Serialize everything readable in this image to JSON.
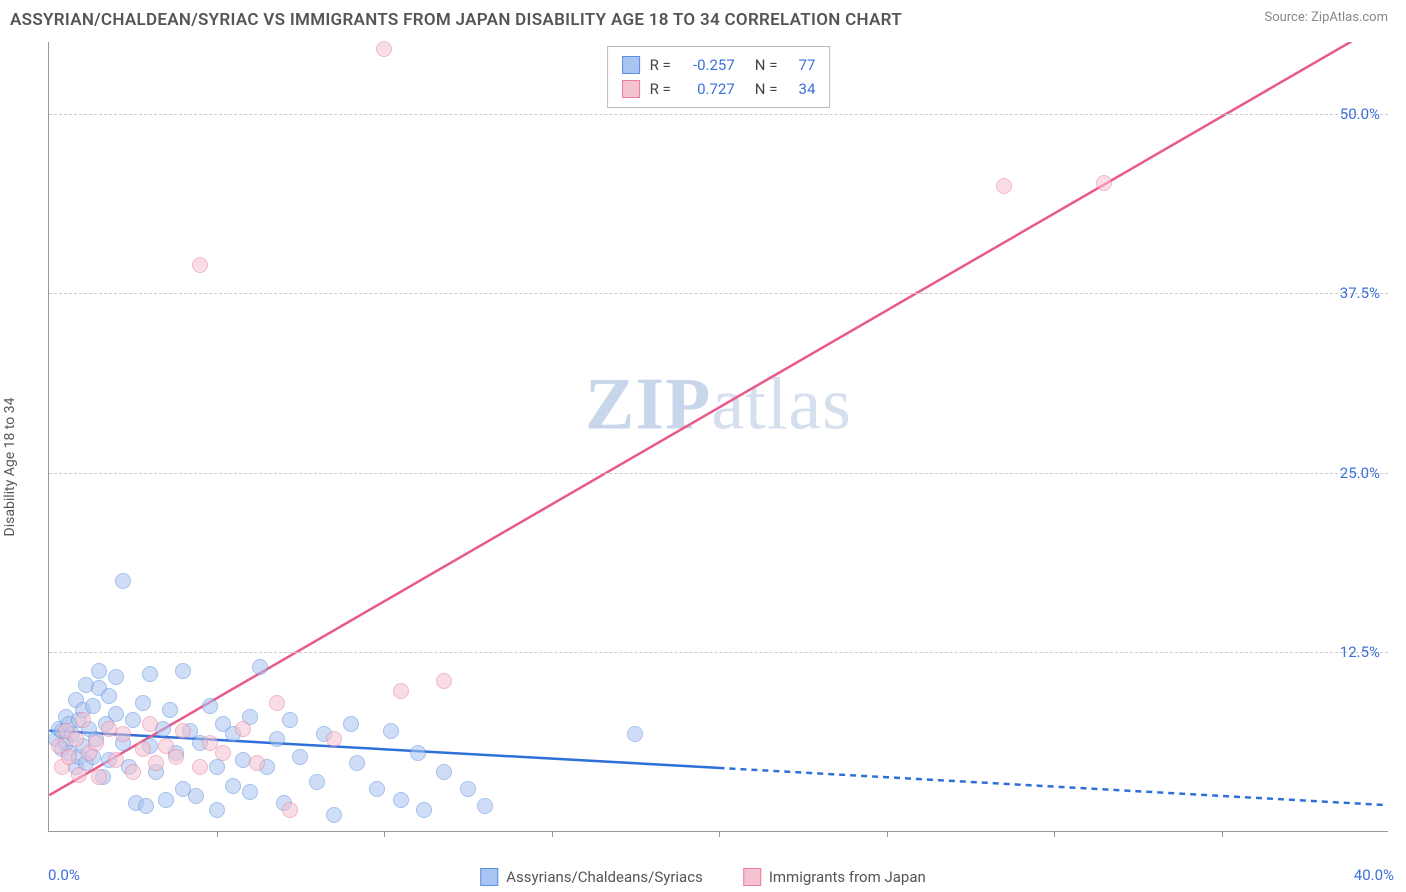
{
  "title": "ASSYRIAN/CHALDEAN/SYRIAC VS IMMIGRANTS FROM JAPAN DISABILITY AGE 18 TO 34 CORRELATION CHART",
  "source": "Source: ZipAtlas.com",
  "y_axis_label": "Disability Age 18 to 34",
  "watermark": {
    "bold": "ZIP",
    "rest": "atlas"
  },
  "chart": {
    "type": "scatter",
    "xlim": [
      0,
      40
    ],
    "ylim": [
      0,
      55
    ],
    "x_origin_label": "0.0%",
    "x_end_label": "40.0%",
    "x_tick_step": 5,
    "y_ticks": [
      {
        "value": 12.5,
        "label": "12.5%"
      },
      {
        "value": 25.0,
        "label": "25.0%"
      },
      {
        "value": 37.5,
        "label": "37.5%"
      },
      {
        "value": 50.0,
        "label": "50.0%"
      }
    ],
    "grid_color": "#cccccc",
    "background_color": "#ffffff",
    "axis_color": "#999999",
    "tick_label_color": "#3b6fd9",
    "marker_radius": 8,
    "marker_opacity": 0.55,
    "series": [
      {
        "name": "Assyrians/Chaldeans/Syriacs",
        "color_fill": "#a8c4f0",
        "color_stroke": "#5b8fe0",
        "legend_color": "#a8c4f0",
        "R": "-0.257",
        "N": "77",
        "trend": {
          "x1": 0,
          "y1": 7.0,
          "x2": 20,
          "y2": 4.4,
          "x2_ext": 40,
          "y2_ext": 1.8,
          "color": "#2f6fd9",
          "width": 2.5
        },
        "points": [
          [
            0.2,
            6.5
          ],
          [
            0.3,
            7.2
          ],
          [
            0.4,
            5.8
          ],
          [
            0.4,
            7.0
          ],
          [
            0.5,
            6.2
          ],
          [
            0.5,
            8.0
          ],
          [
            0.6,
            5.5
          ],
          [
            0.6,
            7.5
          ],
          [
            0.7,
            6.8
          ],
          [
            0.8,
            9.2
          ],
          [
            0.8,
            4.5
          ],
          [
            0.9,
            7.8
          ],
          [
            0.9,
            5.2
          ],
          [
            1.0,
            6.0
          ],
          [
            1.0,
            8.5
          ],
          [
            1.1,
            10.2
          ],
          [
            1.1,
            4.8
          ],
          [
            1.2,
            7.2
          ],
          [
            1.3,
            5.2
          ],
          [
            1.3,
            8.8
          ],
          [
            1.4,
            6.5
          ],
          [
            1.5,
            10.0
          ],
          [
            1.5,
            11.2
          ],
          [
            1.6,
            3.8
          ],
          [
            1.7,
            7.5
          ],
          [
            1.8,
            9.5
          ],
          [
            1.8,
            5.0
          ],
          [
            2.0,
            8.2
          ],
          [
            2.0,
            10.8
          ],
          [
            2.2,
            6.2
          ],
          [
            2.2,
            17.5
          ],
          [
            2.4,
            4.5
          ],
          [
            2.5,
            7.8
          ],
          [
            2.6,
            2.0
          ],
          [
            2.8,
            9.0
          ],
          [
            2.9,
            1.8
          ],
          [
            3.0,
            6.0
          ],
          [
            3.0,
            11.0
          ],
          [
            3.2,
            4.2
          ],
          [
            3.4,
            7.2
          ],
          [
            3.5,
            2.2
          ],
          [
            3.6,
            8.5
          ],
          [
            3.8,
            5.5
          ],
          [
            4.0,
            3.0
          ],
          [
            4.0,
            11.2
          ],
          [
            4.2,
            7.0
          ],
          [
            4.4,
            2.5
          ],
          [
            4.5,
            6.2
          ],
          [
            4.8,
            8.8
          ],
          [
            5.0,
            4.5
          ],
          [
            5.0,
            1.5
          ],
          [
            5.2,
            7.5
          ],
          [
            5.5,
            3.2
          ],
          [
            5.5,
            6.8
          ],
          [
            5.8,
            5.0
          ],
          [
            6.0,
            8.0
          ],
          [
            6.0,
            2.8
          ],
          [
            6.3,
            11.5
          ],
          [
            6.5,
            4.5
          ],
          [
            6.8,
            6.5
          ],
          [
            7.0,
            2.0
          ],
          [
            7.2,
            7.8
          ],
          [
            7.5,
            5.2
          ],
          [
            8.0,
            3.5
          ],
          [
            8.2,
            6.8
          ],
          [
            8.5,
            1.2
          ],
          [
            9.0,
            7.5
          ],
          [
            9.2,
            4.8
          ],
          [
            9.8,
            3.0
          ],
          [
            10.2,
            7.0
          ],
          [
            10.5,
            2.2
          ],
          [
            11.0,
            5.5
          ],
          [
            11.2,
            1.5
          ],
          [
            11.8,
            4.2
          ],
          [
            12.5,
            3.0
          ],
          [
            13.0,
            1.8
          ],
          [
            17.5,
            6.8
          ]
        ]
      },
      {
        "name": "Immigrants from Japan",
        "color_fill": "#f5c2d0",
        "color_stroke": "#e87fa0",
        "legend_color": "#f5c2d0",
        "R": "0.727",
        "N": "34",
        "trend": {
          "x1": 0,
          "y1": 2.5,
          "x2": 40,
          "y2": 56.5,
          "color": "#e85a8a",
          "width": 2.5
        },
        "points": [
          [
            0.3,
            6.0
          ],
          [
            0.4,
            4.5
          ],
          [
            0.5,
            7.0
          ],
          [
            0.6,
            5.2
          ],
          [
            0.8,
            6.5
          ],
          [
            0.9,
            4.0
          ],
          [
            1.0,
            7.8
          ],
          [
            1.2,
            5.5
          ],
          [
            1.4,
            6.2
          ],
          [
            1.5,
            3.8
          ],
          [
            1.8,
            7.2
          ],
          [
            2.0,
            5.0
          ],
          [
            2.2,
            6.8
          ],
          [
            2.5,
            4.2
          ],
          [
            2.8,
            5.8
          ],
          [
            3.0,
            7.5
          ],
          [
            3.2,
            4.8
          ],
          [
            3.5,
            6.0
          ],
          [
            3.8,
            5.2
          ],
          [
            4.0,
            7.0
          ],
          [
            4.5,
            4.5
          ],
          [
            4.8,
            6.2
          ],
          [
            5.2,
            5.5
          ],
          [
            5.8,
            7.2
          ],
          [
            6.2,
            4.8
          ],
          [
            6.8,
            9.0
          ],
          [
            7.2,
            1.5
          ],
          [
            8.5,
            6.5
          ],
          [
            10.5,
            9.8
          ],
          [
            11.8,
            10.5
          ],
          [
            4.5,
            39.5
          ],
          [
            10.0,
            54.5
          ],
          [
            28.5,
            45.0
          ],
          [
            31.5,
            45.2
          ]
        ]
      }
    ]
  },
  "stats_box": {
    "r_label": "R =",
    "n_label": "N ="
  },
  "bottom_legend": {
    "items": [
      {
        "swatch_fill": "#a8c4f0",
        "swatch_border": "#5b8fe0",
        "label": "Assyrians/Chaldeans/Syriacs"
      },
      {
        "swatch_fill": "#f5c2d0",
        "swatch_border": "#e87fa0",
        "label": "Immigrants from Japan"
      }
    ]
  }
}
